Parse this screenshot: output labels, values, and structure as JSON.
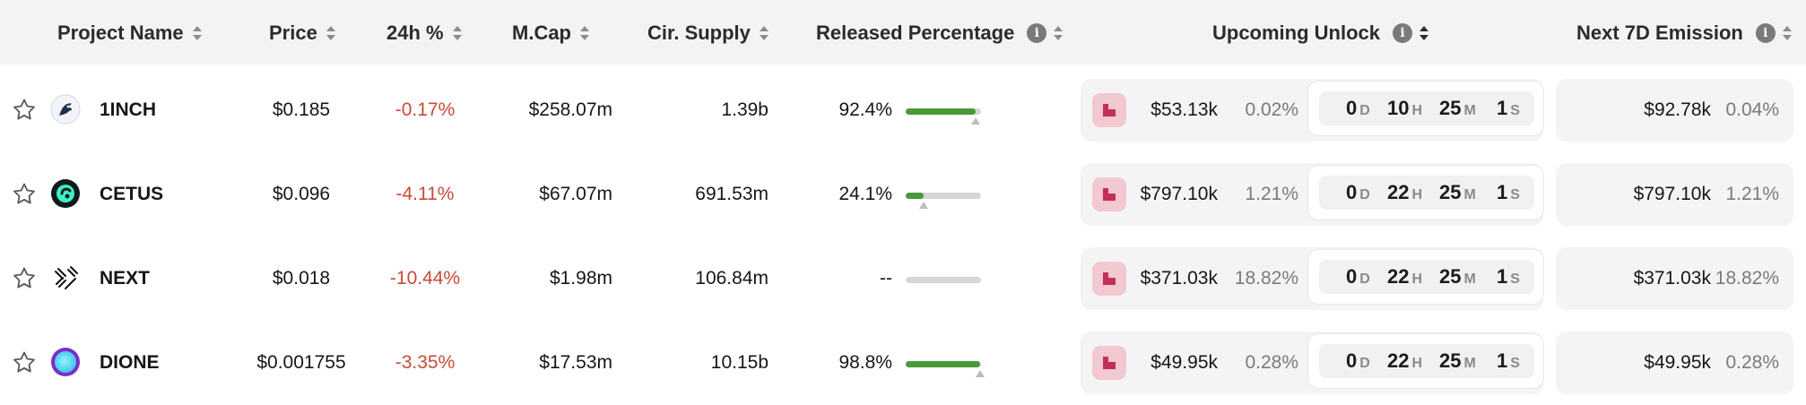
{
  "header": {
    "project_name": "Project Name",
    "price": "Price",
    "change_24h": "24h %",
    "mcap": "M.Cap",
    "cir_supply": "Cir. Supply",
    "released_percentage": "Released Percentage",
    "upcoming_unlock": "Upcoming Unlock",
    "next_7d_emission": "Next 7D Emission",
    "info_glyph": "i"
  },
  "rows": [
    {
      "name": "1INCH",
      "price": "$0.185",
      "change": "-0.17%",
      "mcap": "$258.07m",
      "supply": "1.39b",
      "released": "92.4%",
      "released_fraction": 0.924,
      "unlock_value": "$53.13k",
      "unlock_pct": "0.02%",
      "countdown": {
        "d": "0",
        "h": "10",
        "m": "25",
        "s": "1"
      },
      "emission_value": "$92.78k",
      "emission_pct": "0.04%",
      "logo_icon": "1inch-unicorn-icon"
    },
    {
      "name": "CETUS",
      "price": "$0.096",
      "change": "-4.11%",
      "mcap": "$67.07m",
      "supply": "691.53m",
      "released": "24.1%",
      "released_fraction": 0.241,
      "unlock_value": "$797.10k",
      "unlock_pct": "1.21%",
      "countdown": {
        "d": "0",
        "h": "22",
        "m": "25",
        "s": "1"
      },
      "emission_value": "$797.10k",
      "emission_pct": "1.21%",
      "logo_icon": "cetus-logo-icon"
    },
    {
      "name": "NEXT",
      "price": "$0.018",
      "change": "-10.44%",
      "mcap": "$1.98m",
      "supply": "106.84m",
      "released": "--",
      "released_fraction": 0,
      "unlock_value": "$371.03k",
      "unlock_pct": "18.82%",
      "countdown": {
        "d": "0",
        "h": "22",
        "m": "25",
        "s": "1"
      },
      "emission_value": "$371.03k",
      "emission_pct": "18.82%",
      "logo_icon": "next-pattern-icon"
    },
    {
      "name": "DIONE",
      "price": "$0.001755",
      "change": "-3.35%",
      "mcap": "$17.53m",
      "supply": "10.15b",
      "released": "98.8%",
      "released_fraction": 0.988,
      "unlock_value": "$49.95k",
      "unlock_pct": "0.28%",
      "countdown": {
        "d": "0",
        "h": "22",
        "m": "25",
        "s": "1"
      },
      "emission_value": "$49.95k",
      "emission_pct": "0.28%",
      "logo_icon": "dione-orb-icon"
    }
  ],
  "countdown_units": {
    "d": "D",
    "h": "H",
    "m": "M",
    "s": "S"
  },
  "colors": {
    "negative": "#c84a3a",
    "progress": "#4a9a3a",
    "unlock_icon_bg": "#f2c9d0",
    "unlock_icon_fg": "#c2305a"
  }
}
